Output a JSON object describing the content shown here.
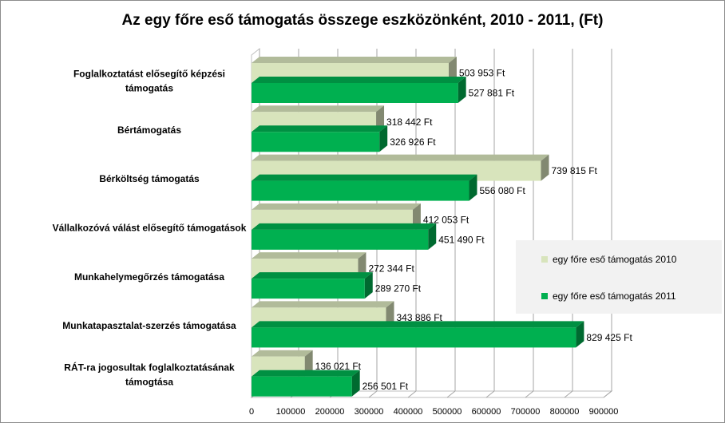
{
  "chart_data": {
    "type": "bar",
    "orientation": "horizontal",
    "three_d": true,
    "title": "Az egy főre eső támogatás összege eszközönként, 2010 - 2011, (Ft)",
    "categories": [
      [
        "Foglalkoztatást elősegítő képzési",
        "támogatás"
      ],
      [
        "Bértámogatás"
      ],
      [
        "Bérköltség támogatás"
      ],
      [
        "Vállalkozóvá válást elősegítő támogatások"
      ],
      [
        "Munkahelymegőrzés támogatása"
      ],
      [
        "Munkatapasztalat-szerzés támogatása"
      ],
      [
        "RÁT-ra jogosultak foglalkoztatásának",
        "támogtása"
      ]
    ],
    "series": [
      {
        "name": "egy főre eső támogatás 2010",
        "color": "#d8e4bc",
        "values": [
          503953,
          318442,
          739815,
          412053,
          272344,
          343886,
          136021
        ],
        "labels": [
          "503 953 Ft",
          "318 442 Ft",
          "739 815 Ft",
          "412 053 Ft",
          "272 344 Ft",
          "343 886 Ft",
          "136 021 Ft"
        ]
      },
      {
        "name": "egy főre eső támogatás 2011",
        "color": "#00b050",
        "values": [
          527881,
          326926,
          556080,
          451490,
          289270,
          829425,
          256501
        ],
        "labels": [
          "527 881 Ft",
          "326 926 Ft",
          "556 080 Ft",
          "451 490 Ft",
          "289 270 Ft",
          "829 425 Ft",
          "256 501 Ft"
        ]
      }
    ],
    "xlim": [
      0,
      900000
    ],
    "xticks": [
      "0",
      "100000",
      "200000",
      "300000",
      "400000",
      "500000",
      "600000",
      "700000",
      "800000",
      "900000"
    ],
    "grid": true,
    "legend_position": "right"
  }
}
